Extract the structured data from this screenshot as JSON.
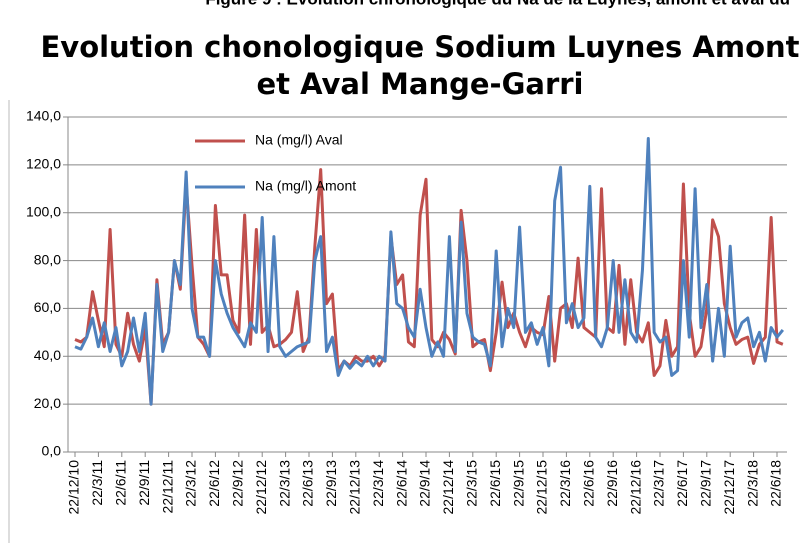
{
  "figure_caption": "Figure 9 : Evolution chronologique du Na de la Luynes, amont et aval du",
  "chart_data": {
    "type": "line",
    "title": [
      "Evolution chonologique Sodium Luynes Amont",
      "et Aval Mange-Garri"
    ],
    "categories": [
      "22/12/10",
      null,
      null,
      null,
      "22/3/11",
      null,
      null,
      null,
      "22/6/11",
      null,
      null,
      null,
      "22/9/11",
      null,
      null,
      null,
      "22/12/11",
      null,
      null,
      null,
      "22/3/12",
      null,
      null,
      null,
      "22/6/12",
      null,
      null,
      null,
      "22/9/12",
      null,
      null,
      null,
      "22/12/12",
      null,
      null,
      null,
      "22/3/13",
      null,
      null,
      null,
      "22/6/13",
      null,
      null,
      null,
      "22/9/13",
      null,
      null,
      null,
      "22/12/13",
      null,
      null,
      null,
      "22/3/14",
      null,
      null,
      null,
      "22/6/14",
      null,
      null,
      null,
      "22/9/14",
      null,
      null,
      null,
      "22/12/14",
      null,
      null,
      null,
      "22/3/15",
      null,
      null,
      null,
      "22/6/15",
      null,
      null,
      null,
      "22/9/15",
      null,
      null,
      null,
      "22/12/15",
      null,
      null,
      null,
      "22/3/16",
      null,
      null,
      null,
      "22/6/16",
      null,
      null,
      null,
      "22/9/16",
      null,
      null,
      null,
      "22/12/16",
      null,
      null,
      null,
      "22/3/17",
      null,
      null,
      null,
      "22/6/17",
      null,
      null,
      null,
      "22/9/17",
      null,
      null,
      null,
      "22/12/17",
      null,
      null,
      null,
      "22/3/18",
      null,
      null,
      null,
      "22/6/18",
      null
    ],
    "series": [
      {
        "name": "Na (mg/l) Aval",
        "color": "#c0504d",
        "values": [
          47,
          46,
          48,
          67,
          55,
          44,
          93,
          45,
          40,
          58,
          45,
          38,
          52,
          20,
          72,
          45,
          50,
          80,
          68,
          112,
          78,
          48,
          45,
          40,
          103,
          74,
          74,
          55,
          50,
          99,
          45,
          93,
          50,
          53,
          44,
          45,
          47,
          50,
          67,
          42,
          48,
          86,
          118,
          62,
          66,
          34,
          38,
          36,
          40,
          38,
          38,
          40,
          36,
          40,
          90,
          70,
          74,
          46,
          44,
          99,
          114,
          47,
          44,
          50,
          47,
          41,
          101,
          80,
          44,
          46,
          47,
          34,
          50,
          71,
          52,
          58,
          50,
          44,
          52,
          50,
          49,
          65,
          38,
          60,
          62,
          52,
          81,
          52,
          50,
          48,
          110,
          52,
          50,
          78,
          45,
          72,
          50,
          46,
          54,
          32,
          36,
          55,
          40,
          44,
          112,
          58,
          40,
          44,
          60,
          97,
          90,
          62,
          52,
          45,
          47,
          48,
          37,
          45,
          48,
          98,
          46,
          45
        ]
      },
      {
        "name": "Na (mg/l) Amont",
        "color": "#4f81bd",
        "values": [
          44,
          43,
          48,
          56,
          44,
          54,
          42,
          52,
          36,
          42,
          56,
          42,
          58,
          20,
          70,
          42,
          50,
          80,
          70,
          117,
          60,
          48,
          48,
          40,
          80,
          66,
          58,
          52,
          48,
          44,
          54,
          50,
          98,
          42,
          90,
          44,
          40,
          42,
          44,
          45,
          46,
          80,
          90,
          42,
          48,
          32,
          38,
          35,
          38,
          36,
          40,
          36,
          40,
          38,
          92,
          62,
          60,
          52,
          48,
          68,
          52,
          40,
          46,
          40,
          90,
          42,
          96,
          58,
          48,
          46,
          45,
          36,
          84,
          44,
          60,
          52,
          94,
          50,
          54,
          45,
          52,
          36,
          105,
          119,
          54,
          62,
          52,
          56,
          111,
          48,
          44,
          52,
          80,
          50,
          72,
          50,
          46,
          76,
          131,
          50,
          46,
          48,
          32,
          34,
          80,
          48,
          110,
          52,
          70,
          38,
          60,
          40,
          86,
          48,
          54,
          56,
          44,
          50,
          38,
          52,
          48,
          51
        ]
      }
    ],
    "ylim": [
      0,
      140
    ],
    "yticks": [
      {
        "value": 0,
        "label": "0,0"
      },
      {
        "value": 20,
        "label": "20,0"
      },
      {
        "value": 40,
        "label": "40,0"
      },
      {
        "value": 60,
        "label": "60,0"
      },
      {
        "value": 80,
        "label": "80,0"
      },
      {
        "value": 100,
        "label": "100,0"
      },
      {
        "value": 120,
        "label": "120,0"
      },
      {
        "value": 140,
        "label": "140,0"
      }
    ],
    "grid": true
  }
}
